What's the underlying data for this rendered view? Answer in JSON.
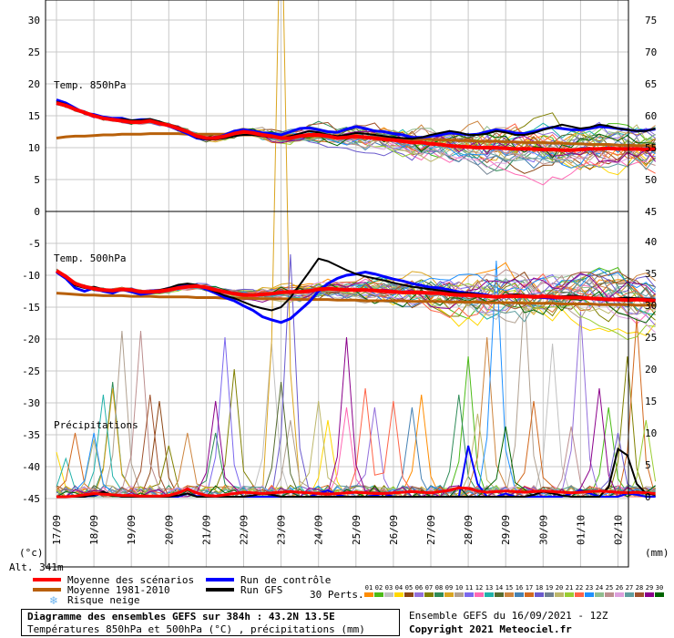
{
  "colors": {
    "mean": "#ff0000",
    "normal": "#b8600a",
    "control": "#0000ff",
    "gfs": "#000000",
    "grid": "#c8c8c8",
    "snow": "#6cb4f0"
  },
  "units": {
    "left": "(°c)",
    "right": "(mm)"
  },
  "altitude": "Alt. 341m",
  "panel_labels": {
    "t850": "Temp. 850hPa",
    "t500": "Temp. 500hPa",
    "precip": "Précipitations"
  },
  "legend": {
    "mean": "Moyenne des scénarios",
    "normal": "Moyenne 1981-2010",
    "snow": "Risque neige",
    "control": "Run de contrôle",
    "gfs": "Run GFS",
    "perts_label": "30 Perts.",
    "perts": [
      "01",
      "02",
      "03",
      "04",
      "05",
      "06",
      "07",
      "08",
      "09",
      "10",
      "11",
      "12",
      "13",
      "14",
      "15",
      "16",
      "17",
      "18",
      "19",
      "20",
      "21",
      "22",
      "23",
      "24",
      "25",
      "26",
      "27",
      "28",
      "29",
      "30"
    ],
    "pert_colors": [
      "#ff8c00",
      "#4cbb17",
      "#c0c0c0",
      "#ffd700",
      "#8b4513",
      "#9370db",
      "#808000",
      "#2e8b57",
      "#daa520",
      "#b0a090",
      "#7b68ee",
      "#ff69b4",
      "#20b2aa",
      "#556b2f",
      "#cd853f",
      "#4682b4",
      "#d2691e",
      "#6a5acd",
      "#708090",
      "#bdb76b",
      "#9acd32",
      "#ff6347",
      "#1e90ff",
      "#8fbc8f",
      "#bc8f8f",
      "#dda0dd",
      "#5f9ea0",
      "#a0522d",
      "#8b008b",
      "#006400"
    ]
  },
  "footer": {
    "title": "Diagramme des ensembles GEFS sur 384h : 43.2N 13.5E",
    "subtitle": "Températures 850hPa et 500hPa (°C) , précipitations (mm)",
    "run": "Ensemble GEFS du 16/09/2021 - 12Z",
    "copyright": "Copyright 2021 Meteociel.fr"
  },
  "chart_data": {
    "type": "line",
    "x_labels": [
      "17/09",
      "18/09",
      "19/09",
      "20/09",
      "21/09",
      "22/09",
      "23/09",
      "24/09",
      "25/09",
      "26/09",
      "27/09",
      "28/09",
      "29/09",
      "30/09",
      "01/10",
      "02/10"
    ],
    "left_axis_ticks": [
      30,
      25,
      20,
      15,
      10,
      5,
      0,
      -5,
      -10,
      -15,
      -20,
      -25,
      -30,
      -35,
      -40,
      -45
    ],
    "right_axis_ticks_t850": [
      75,
      70,
      65,
      60,
      55,
      50,
      45
    ],
    "right_axis_ticks_other": [
      40,
      35,
      30,
      25,
      20,
      15,
      10,
      5,
      0
    ],
    "time_range_h": [
      0,
      384
    ],
    "step_h": 6,
    "t850": {
      "mean": [
        17,
        16.6,
        16,
        15.5,
        15,
        14.6,
        14.4,
        14.2,
        14,
        14,
        14.2,
        13.8,
        13.5,
        13,
        12.5,
        11.8,
        11.5,
        11.5,
        11.8,
        12.2,
        12.5,
        12.3,
        12,
        11.8,
        11.5,
        11.5,
        11.8,
        12,
        12,
        11.8,
        11.5,
        11.6,
        11.8,
        11.6,
        11.5,
        11.3,
        11.2,
        11,
        10.8,
        10.8,
        10.6,
        10.5,
        10.3,
        10.2,
        10.1,
        10,
        10,
        10,
        9.9,
        9.8,
        9.8,
        9.8,
        9.7,
        9.7,
        9.6,
        9.6,
        9.7,
        9.8,
        9.8,
        9.9,
        9.8,
        9.8,
        9.8,
        9.7,
        9.8
      ],
      "normal": [
        11.5,
        11.7,
        11.8,
        11.8,
        11.9,
        12,
        12,
        12.1,
        12.1,
        12.1,
        12.2,
        12.2,
        12.2,
        12.2,
        12.1,
        12.1,
        12.1,
        12.1,
        12.1,
        12,
        12,
        12,
        12,
        11.9,
        11.9,
        11.9,
        11.8,
        11.8,
        11.8,
        11.7,
        11.7,
        11.7,
        11.6,
        11.6,
        11.5,
        11.5,
        11.5,
        11.4,
        11.3,
        11.3,
        11.3,
        11.2,
        11.2,
        11.1,
        11.1,
        11,
        11,
        11,
        10.9,
        10.9,
        10.8,
        10.8,
        10.8,
        10.7,
        10.7,
        10.6,
        10.6,
        10.5,
        10.5,
        10.5,
        10.4,
        10.4,
        10.3,
        10.3,
        10.2
      ],
      "control": [
        17.5,
        17,
        16.2,
        15.4,
        15.2,
        14.8,
        14.6,
        14.6,
        14.2,
        14.4,
        14.4,
        14,
        13.4,
        12.8,
        12.2,
        11.5,
        11.3,
        11.5,
        12,
        12.6,
        12.8,
        12.6,
        12.3,
        12.2,
        12,
        12.5,
        13,
        13.1,
        12.8,
        12.5,
        12.4,
        12.9,
        13.3,
        13,
        12.6,
        12.5,
        12.2,
        12,
        11.6,
        11.6,
        11.8,
        12,
        12.3,
        12.2,
        12,
        12.1,
        12.5,
        12.8,
        12.6,
        12.3,
        12.2,
        12.5,
        12.9,
        13.2,
        13,
        12.8,
        12.8,
        13,
        13.3,
        13.2,
        13,
        12.8,
        12.6,
        12.7,
        12.9
      ],
      "gfs": [
        17.2,
        16.8,
        16,
        15.6,
        15,
        14.6,
        14.3,
        14.5,
        14.3,
        14.3,
        14.5,
        14.1,
        13.6,
        13.2,
        12.6,
        11.6,
        11.3,
        11.3,
        11.5,
        11.8,
        12,
        12,
        11.8,
        11.6,
        11.5,
        11.8,
        12.2,
        12.6,
        12.4,
        12,
        11.8,
        12,
        12.3,
        12.2,
        12,
        11.8,
        11.6,
        11.5,
        11.4,
        11.6,
        12,
        12.3,
        12.6,
        12.4,
        12,
        12,
        12.2,
        12.6,
        12.4,
        12,
        12,
        12.3,
        12.8,
        13.2,
        13.6,
        13.3,
        13,
        13.2,
        13.6,
        13.4,
        13,
        12.8,
        12.6,
        12.6,
        13
      ]
    },
    "t500": {
      "mean": [
        -9.3,
        -10.2,
        -11.3,
        -11.8,
        -12.1,
        -12.3,
        -12.4,
        -12.2,
        -12.3,
        -12.6,
        -12.6,
        -12.5,
        -12.3,
        -12,
        -11.8,
        -11.7,
        -11.9,
        -12.3,
        -12.6,
        -12.9,
        -13.1,
        -13.1,
        -13,
        -12.9,
        -12.7,
        -12.6,
        -12.6,
        -12.5,
        -12.2,
        -12.1,
        -12.2,
        -12.3,
        -12.3,
        -12.3,
        -12.4,
        -12.5,
        -12.6,
        -12.7,
        -12.7,
        -12.7,
        -12.8,
        -12.8,
        -13,
        -13.1,
        -13.1,
        -13.2,
        -13.3,
        -13.4,
        -13.3,
        -13.3,
        -13.3,
        -13.4,
        -13.3,
        -13.4,
        -13.5,
        -13.5,
        -13.5,
        -13.6,
        -13.7,
        -13.8,
        -13.8,
        -13.9,
        -13.8,
        -13.9,
        -14
      ],
      "normal": [
        -12.8,
        -12.9,
        -13,
        -13.1,
        -13.1,
        -13.2,
        -13.2,
        -13.2,
        -13.3,
        -13.3,
        -13.3,
        -13.4,
        -13.4,
        -13.4,
        -13.4,
        -13.5,
        -13.5,
        -13.5,
        -13.6,
        -13.6,
        -13.6,
        -13.6,
        -13.7,
        -13.7,
        -13.7,
        -13.7,
        -13.8,
        -13.8,
        -13.8,
        -13.8,
        -13.9,
        -13.9,
        -13.9,
        -14,
        -14,
        -14,
        -14,
        -14,
        -14.1,
        -14.1,
        -14.1,
        -14.1,
        -14.2,
        -14.2,
        -14.2,
        -14.2,
        -14.3,
        -14.3,
        -14.3,
        -14.3,
        -14.4,
        -14.4,
        -14.4,
        -14.4,
        -14.5,
        -14.5,
        -14.5,
        -14.5,
        -14.6,
        -14.6,
        -14.6,
        -14.6,
        -14.7,
        -14.7,
        -14.7
      ],
      "control": [
        -9.5,
        -10.5,
        -12,
        -12.5,
        -12,
        -12.5,
        -12.8,
        -12.2,
        -12.6,
        -13,
        -12.8,
        -12.5,
        -12.2,
        -11.8,
        -11.5,
        -11.6,
        -12.2,
        -12.8,
        -13.5,
        -14,
        -14.8,
        -15.5,
        -16.5,
        -17,
        -17.4,
        -16.8,
        -15.5,
        -14.2,
        -12.5,
        -11.3,
        -10.5,
        -10,
        -9.8,
        -9.5,
        -9.8,
        -10.2,
        -10.6,
        -10.9,
        -11.3,
        -11.6,
        -11.9,
        -12,
        -12.3,
        -12.6,
        -12.8,
        -12.9,
        -13.1,
        -13.4,
        -13.2,
        -13.1,
        -13.2,
        -13.4,
        -13.5,
        -13.6,
        -13.5,
        -13.3,
        -13.4,
        -13.6,
        -13.8,
        -13.9,
        -13.7,
        -13.6,
        -13.7,
        -13.8,
        -13.9
      ],
      "gfs": [
        -9.4,
        -10.3,
        -11.6,
        -12,
        -11.8,
        -12.2,
        -12.5,
        -12.1,
        -12.3,
        -12.6,
        -12.5,
        -12.3,
        -12,
        -11.5,
        -11.3,
        -11.5,
        -12,
        -12.6,
        -13.2,
        -13.6,
        -14.2,
        -14.8,
        -15.2,
        -15.5,
        -15,
        -13.5,
        -11.5,
        -9.5,
        -7.4,
        -7.8,
        -8.5,
        -9.2,
        -9.8,
        -10.2,
        -10.5,
        -10.8,
        -11.2,
        -11.5,
        -11.8,
        -12,
        -12.2,
        -12.4,
        -12.6,
        -12.8,
        -12.8,
        -13,
        -13.2,
        -13.4,
        -13.2,
        -13,
        -13.1,
        -13.3,
        -13.4,
        -13.4,
        -13.3,
        -13.2,
        -13.3,
        -13.5,
        -13.6,
        -13.7,
        -13.6,
        -13.5,
        -13.6,
        -13.7,
        -13.8
      ]
    },
    "precip": {
      "mean": [
        0,
        0,
        0.1,
        0.3,
        0.5,
        0.4,
        0.3,
        0.2,
        0.2,
        0.1,
        0.1,
        0.1,
        0.2,
        0.6,
        1.2,
        0.6,
        0.2,
        0.1,
        0.3,
        0.5,
        0.7,
        0.6,
        0.5,
        0.6,
        0.7,
        0.8,
        0.7,
        0.6,
        0.5,
        0.4,
        0.5,
        0.6,
        0.7,
        0.6,
        0.5,
        0.5,
        0.6,
        0.7,
        0.8,
        0.7,
        0.6,
        0.8,
        1.0,
        1.4,
        1.3,
        0.9,
        0.7,
        0.8,
        0.9,
        0.8,
        0.7,
        0.8,
        0.9,
        0.8,
        0.7,
        0.6,
        0.7,
        0.8,
        0.9,
        0.8,
        0.7,
        0.6,
        0.7,
        0.6,
        0.5
      ],
      "control": [
        0,
        0,
        0,
        0,
        0.2,
        0.5,
        0.3,
        0,
        0,
        0,
        0,
        0,
        0,
        0,
        0.5,
        0.1,
        0,
        0,
        0,
        0,
        0,
        0,
        0,
        0,
        0,
        0,
        0,
        0,
        0.5,
        1,
        0.3,
        0,
        0,
        0,
        0.2,
        0.5,
        0,
        0,
        0,
        0,
        0,
        0,
        0,
        0,
        8,
        2,
        0,
        0,
        0.5,
        0,
        0,
        0,
        0,
        0,
        0,
        0.5,
        1,
        0.5,
        0,
        0,
        0,
        0.5,
        0.3,
        0,
        0
      ],
      "gfs": [
        0,
        0,
        0,
        0,
        0.3,
        0.8,
        0.2,
        0,
        0,
        0,
        0,
        0,
        0,
        0.2,
        0.5,
        0,
        0,
        0,
        0,
        0,
        0,
        0.2,
        0.5,
        0.3,
        0,
        0,
        0,
        0,
        0,
        0,
        0,
        0,
        0,
        0,
        0,
        0,
        0,
        0,
        0,
        0,
        0,
        0,
        0,
        0,
        0,
        0,
        0,
        0,
        0,
        0,
        0,
        0.3,
        0.8,
        0.5,
        0.2,
        0,
        0,
        0,
        0,
        1.5,
        7.5,
        6.5,
        2,
        0.5,
        0.3
      ]
    },
    "precip_peaks": [
      [
        2,
        7,
        3
      ],
      [
        11,
        10,
        16
      ],
      [
        5,
        6,
        12
      ],
      [
        22,
        10,
        22
      ],
      [
        23,
        9,
        19
      ],
      [
        32,
        16,
        12
      ],
      [
        36,
        17,
        8
      ],
      [
        37,
        18,
        7
      ],
      [
        40,
        26,
        9
      ],
      [
        55,
        26,
        24
      ],
      [
        58,
        16,
        27
      ],
      [
        64,
        15,
        4
      ],
      [
        69,
        8,
        6
      ],
      [
        83,
        10,
        14
      ],
      [
        99,
        15,
        28
      ],
      [
        101,
        10,
        7
      ],
      [
        107,
        25,
        10
      ],
      [
        115,
        20,
        6
      ],
      [
        143,
        98,
        8
      ],
      [
        139,
        24,
        2
      ],
      [
        145,
        18,
        13
      ],
      [
        149,
        38,
        17
      ],
      [
        152,
        12,
        9
      ],
      [
        166,
        15,
        19
      ],
      [
        174,
        12,
        3
      ],
      [
        183,
        25,
        28
      ],
      [
        186,
        14,
        11
      ],
      [
        197,
        17,
        21
      ],
      [
        204,
        14,
        5
      ],
      [
        215,
        15,
        21
      ],
      [
        230,
        14,
        15
      ],
      [
        234,
        16,
        0
      ],
      [
        255,
        16,
        7
      ],
      [
        262,
        22,
        1
      ],
      [
        270,
        13,
        19
      ],
      [
        277,
        25,
        14
      ],
      [
        282,
        37,
        22
      ],
      [
        290,
        11,
        29
      ],
      [
        298,
        32,
        9
      ],
      [
        304,
        15,
        16
      ],
      [
        315,
        24,
        2
      ],
      [
        330,
        11,
        24
      ],
      [
        337,
        29,
        5
      ],
      [
        346,
        17,
        28
      ],
      [
        355,
        14,
        1
      ],
      [
        362,
        10,
        17
      ],
      [
        366,
        22,
        6
      ],
      [
        373,
        28,
        16
      ],
      [
        380,
        12,
        20
      ]
    ]
  }
}
